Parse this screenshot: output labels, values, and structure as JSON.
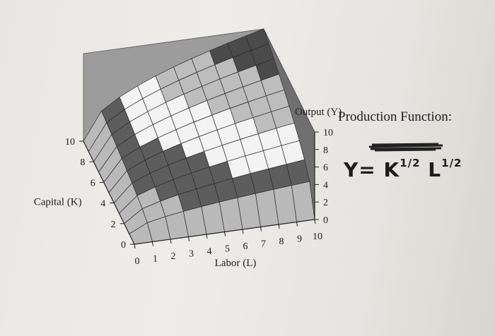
{
  "side_note": {
    "title": "Production Function:",
    "formula_base_k": "Y= K",
    "formula_exp_k": "1/2",
    "formula_base_l": "L",
    "formula_exp_l": "1/2"
  },
  "chart_data": {
    "type": "surface-3d",
    "function": "Y = K^(1/2) L^(1/2)",
    "x_axis": {
      "label": "Labor (L)",
      "ticks": [
        "0",
        "1",
        "2",
        "3",
        "4",
        "5",
        "6",
        "7",
        "8",
        "9",
        "10"
      ],
      "range": [
        0,
        10
      ]
    },
    "y_axis": {
      "label": "Capital (K)",
      "ticks": [
        "0",
        "2",
        "4",
        "6",
        "8",
        "10"
      ],
      "range": [
        0,
        10
      ]
    },
    "z_axis": {
      "label": "Output (Y)",
      "ticks": [
        "0",
        "2",
        "4",
        "6",
        "8",
        "10"
      ],
      "range": [
        0,
        10
      ]
    },
    "bands": [
      {
        "range": [
          0,
          2
        ],
        "color": "#b9b9b9"
      },
      {
        "range": [
          2,
          4
        ],
        "color": "#5d5d5d"
      },
      {
        "range": [
          4,
          6
        ],
        "color": "#f3f3f3"
      },
      {
        "range": [
          6,
          8
        ],
        "color": "#bdbdbd"
      },
      {
        "range": [
          8,
          10
        ],
        "color": "#4a4a4a"
      }
    ],
    "grid": true,
    "wall_colors": {
      "left": "#9c9c9c",
      "right": "#6f6f6f"
    }
  }
}
